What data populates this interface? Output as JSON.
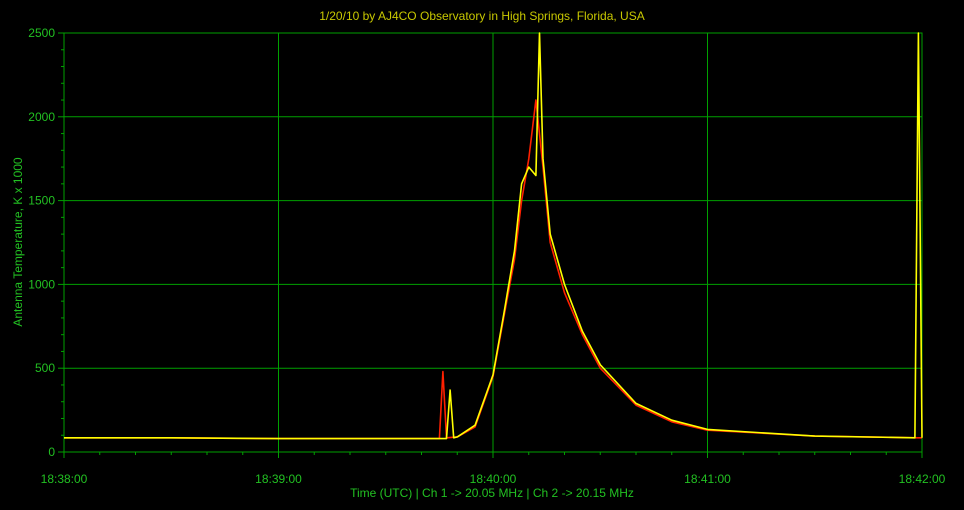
{
  "chart_data": {
    "type": "line",
    "title": "1/20/10  by  AJ4CO Observatory  in  High Springs, Florida, USA",
    "xlabel": "Time (UTC)  |  Ch 1 -> 20.05 MHz  |  Ch 2 -> 20.15 MHz",
    "ylabel": "Antenna Temperature, K x 1000",
    "xlim": [
      "18:38:00",
      "18:42:00"
    ],
    "x_ticks": [
      "18:38:00",
      "18:39:00",
      "18:40:00",
      "18:41:00",
      "18:42:00"
    ],
    "ylim": [
      0,
      2500
    ],
    "y_ticks": [
      0,
      500,
      1000,
      1500,
      2000,
      2500
    ],
    "grid": true,
    "background": "#000000",
    "grid_color": "#00a000",
    "text_color": "#22c022",
    "title_color": "#c8c800",
    "series": [
      {
        "color": "#ff2000",
        "x": [
          "18:38:00",
          "18:38:30",
          "18:39:00",
          "18:39:30",
          "18:39:40",
          "18:39:45",
          "18:39:46",
          "18:39:47",
          "18:39:50",
          "18:39:55",
          "18:40:00",
          "18:40:03",
          "18:40:06",
          "18:40:08",
          "18:40:10",
          "18:40:12",
          "18:40:14",
          "18:40:16",
          "18:40:20",
          "18:40:25",
          "18:40:30",
          "18:40:40",
          "18:40:50",
          "18:41:00",
          "18:41:30",
          "18:41:59",
          "18:42:00"
        ],
        "y": [
          85,
          85,
          80,
          80,
          80,
          80,
          480,
          85,
          90,
          150,
          450,
          800,
          1150,
          1500,
          1750,
          2100,
          1700,
          1250,
          950,
          700,
          500,
          280,
          180,
          130,
          95,
          85,
          85
        ]
      },
      {
        "color": "#ffff00",
        "x": [
          "18:38:00",
          "18:38:30",
          "18:39:00",
          "18:39:30",
          "18:39:40",
          "18:39:47",
          "18:39:48",
          "18:39:49",
          "18:39:50",
          "18:39:55",
          "18:40:00",
          "18:40:03",
          "18:40:06",
          "18:40:08",
          "18:40:10",
          "18:40:12",
          "18:40:13",
          "18:40:14",
          "18:40:16",
          "18:40:20",
          "18:40:25",
          "18:40:30",
          "18:40:40",
          "18:40:50",
          "18:41:00",
          "18:41:30",
          "18:41:58",
          "18:41:59",
          "18:42:00"
        ],
        "y": [
          85,
          85,
          80,
          80,
          80,
          80,
          370,
          85,
          90,
          160,
          460,
          820,
          1200,
          1600,
          1700,
          1650,
          2500,
          1750,
          1300,
          1000,
          720,
          520,
          290,
          190,
          135,
          95,
          85,
          2500,
          85
        ]
      }
    ]
  }
}
